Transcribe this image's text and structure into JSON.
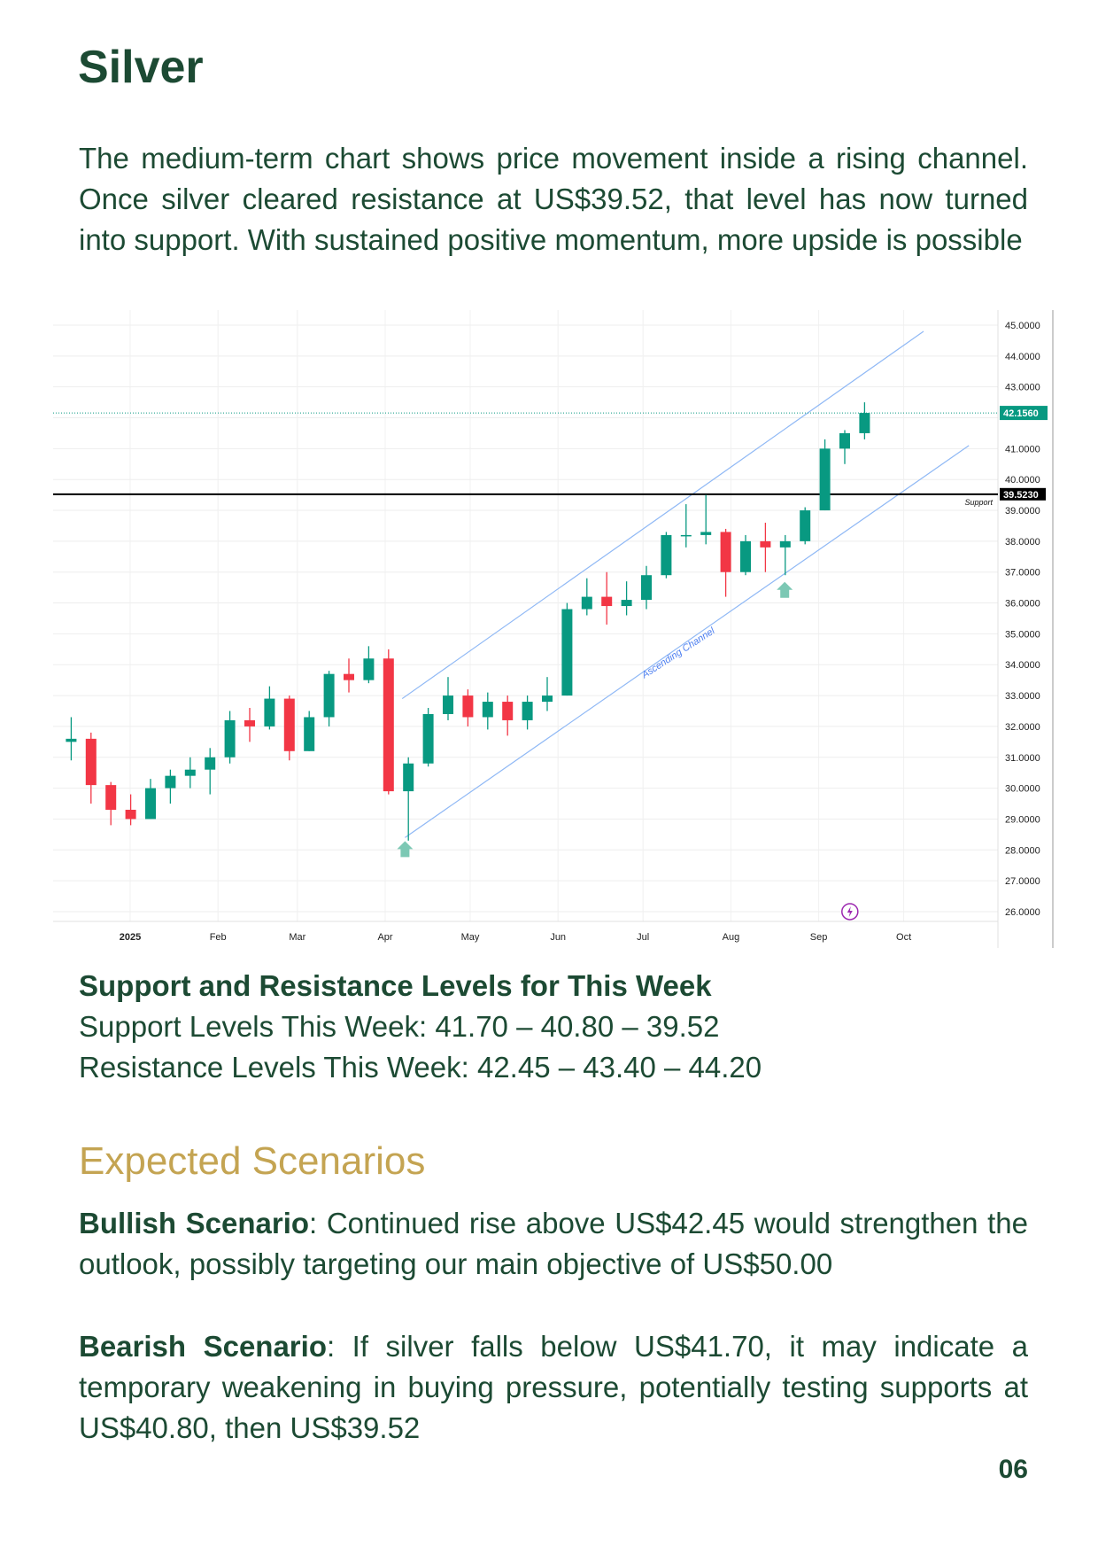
{
  "title": "Silver",
  "intro": "The medium-term chart shows price movement inside a rising channel. Once silver cleared resistance at US$39.52, that level has now turned into support. With sustained positive momentum, more upside is possible",
  "levels": {
    "heading": "Support and Resistance Levels for This Week",
    "support": "Support Levels This Week: 41.70 – 40.80 – 39.52",
    "resistance": "Resistance Levels This Week: 42.45 – 43.40 – 44.20"
  },
  "scenarios": {
    "title": "Expected Scenarios",
    "bullish_label": "Bullish Scenario",
    "bullish_text": ": Continued rise above US$42.45 would strengthen the outlook, possibly targeting our main objective of US$50.00",
    "bearish_label": "Bearish Scenario",
    "bearish_text": ": If silver falls below US$41.70, it may indicate a temporary weakening in buying pressure, potentially testing supports at US$40.80, then US$39.52"
  },
  "page_number": "06",
  "colors": {
    "text": "#1c4a33",
    "accent": "#c4a452",
    "up": "#089981",
    "down": "#f23645",
    "channel": "#8fb8f5",
    "support": "#000000",
    "last_price": "#089981",
    "lightning": "#9c27b0"
  },
  "chart_data": {
    "type": "candlestick",
    "ylim": [
      25.5,
      45.5
    ],
    "y_ticks": [
      "45.0000",
      "44.0000",
      "43.0000",
      "41.0000",
      "40.0000",
      "39.0000",
      "38.0000",
      "37.0000",
      "36.0000",
      "35.0000",
      "34.0000",
      "33.0000",
      "32.0000",
      "31.0000",
      "30.0000",
      "29.0000",
      "28.0000",
      "27.0000",
      "26.0000"
    ],
    "x_ticks": [
      {
        "label": "2025",
        "date": "2025-01-01"
      },
      {
        "label": "Feb",
        "date": "2025-02-01"
      },
      {
        "label": "Mar",
        "date": "2025-03-01"
      },
      {
        "label": "Apr",
        "date": "2025-04-01"
      },
      {
        "label": "May",
        "date": "2025-05-01"
      },
      {
        "label": "Jun",
        "date": "2025-06-01"
      },
      {
        "label": "Jul",
        "date": "2025-07-01"
      },
      {
        "label": "Aug",
        "date": "2025-08-01"
      },
      {
        "label": "Sep",
        "date": "2025-09-01"
      },
      {
        "label": "Oct",
        "date": "2025-10-01"
      }
    ],
    "x_range": [
      "2024-12-04",
      "2025-11-10"
    ],
    "grid": true,
    "candles": [
      [
        "2024-12-09",
        31.5,
        32.3,
        30.9,
        31.6
      ],
      [
        "2024-12-16",
        31.6,
        31.8,
        29.5,
        30.1
      ],
      [
        "2024-12-23",
        30.1,
        30.2,
        28.8,
        29.3
      ],
      [
        "2024-12-30",
        29.3,
        29.8,
        28.8,
        29.0
      ],
      [
        "2025-01-06",
        29.0,
        30.3,
        29.0,
        30.0
      ],
      [
        "2025-01-13",
        30.0,
        30.6,
        29.5,
        30.4
      ],
      [
        "2025-01-20",
        30.4,
        31.0,
        30.0,
        30.6
      ],
      [
        "2025-01-27",
        30.6,
        31.3,
        29.8,
        31.0
      ],
      [
        "2025-02-03",
        31.0,
        32.5,
        30.8,
        32.2
      ],
      [
        "2025-02-10",
        32.2,
        32.6,
        31.5,
        32.0
      ],
      [
        "2025-02-17",
        32.0,
        33.3,
        31.9,
        32.9
      ],
      [
        "2025-02-24",
        32.9,
        33.0,
        30.9,
        31.2
      ],
      [
        "2025-03-03",
        31.2,
        32.5,
        31.2,
        32.3
      ],
      [
        "2025-03-10",
        32.3,
        33.8,
        32.0,
        33.7
      ],
      [
        "2025-03-17",
        33.7,
        34.2,
        33.1,
        33.5
      ],
      [
        "2025-03-24",
        33.5,
        34.6,
        33.4,
        34.2
      ],
      [
        "2025-03-31",
        34.2,
        34.5,
        29.8,
        29.9
      ],
      [
        "2025-04-07",
        29.9,
        31.0,
        28.3,
        30.8
      ],
      [
        "2025-04-14",
        30.8,
        32.6,
        30.7,
        32.4
      ],
      [
        "2025-04-21",
        32.4,
        33.6,
        32.2,
        33.0
      ],
      [
        "2025-04-28",
        33.0,
        33.2,
        32.0,
        32.3
      ],
      [
        "2025-05-05",
        32.3,
        33.1,
        31.9,
        32.8
      ],
      [
        "2025-05-12",
        32.8,
        33.0,
        31.7,
        32.2
      ],
      [
        "2025-05-19",
        32.2,
        33.0,
        31.9,
        32.8
      ],
      [
        "2025-05-26",
        32.8,
        33.6,
        32.5,
        33.0
      ],
      [
        "2025-06-02",
        33.0,
        36.0,
        33.0,
        35.8
      ],
      [
        "2025-06-09",
        35.8,
        36.8,
        35.6,
        36.2
      ],
      [
        "2025-06-16",
        36.2,
        37.0,
        35.3,
        35.9
      ],
      [
        "2025-06-23",
        35.9,
        36.7,
        35.6,
        36.1
      ],
      [
        "2025-06-30",
        36.1,
        37.2,
        35.8,
        36.9
      ],
      [
        "2025-07-07",
        36.9,
        38.3,
        36.8,
        38.2
      ],
      [
        "2025-07-14",
        38.2,
        39.2,
        37.8,
        38.2
      ],
      [
        "2025-07-21",
        38.2,
        39.5,
        37.9,
        38.3
      ],
      [
        "2025-07-28",
        38.3,
        38.4,
        36.2,
        37.0
      ],
      [
        "2025-08-04",
        37.0,
        38.2,
        36.9,
        38.0
      ],
      [
        "2025-08-11",
        38.0,
        38.6,
        37.0,
        37.8
      ],
      [
        "2025-08-18",
        37.8,
        38.2,
        36.9,
        38.0
      ],
      [
        "2025-08-25",
        38.0,
        39.1,
        37.9,
        39.0
      ],
      [
        "2025-09-01",
        39.0,
        41.3,
        39.0,
        41.0
      ],
      [
        "2025-09-08",
        41.0,
        41.6,
        40.5,
        41.5
      ],
      [
        "2025-09-15",
        41.5,
        42.5,
        41.3,
        42.156
      ]
    ],
    "channel": {
      "label": "Ascending Channel",
      "upper": [
        [
          "2025-04-07",
          32.9
        ],
        [
          "2025-10-08",
          44.8
        ]
      ],
      "lower": [
        [
          "2025-04-08",
          28.4
        ],
        [
          "2025-10-24",
          41.1
        ]
      ]
    },
    "support_line": {
      "value": 39.523,
      "label": "Support",
      "price_label": "39.5230"
    },
    "last_price": {
      "value": 42.156,
      "label": "42.1560"
    },
    "arrows": [
      [
        "2025-04-08",
        28.4
      ],
      [
        "2025-08-20",
        36.8
      ]
    ],
    "lightning_marker": [
      "2025-09-12",
      26.0
    ]
  }
}
